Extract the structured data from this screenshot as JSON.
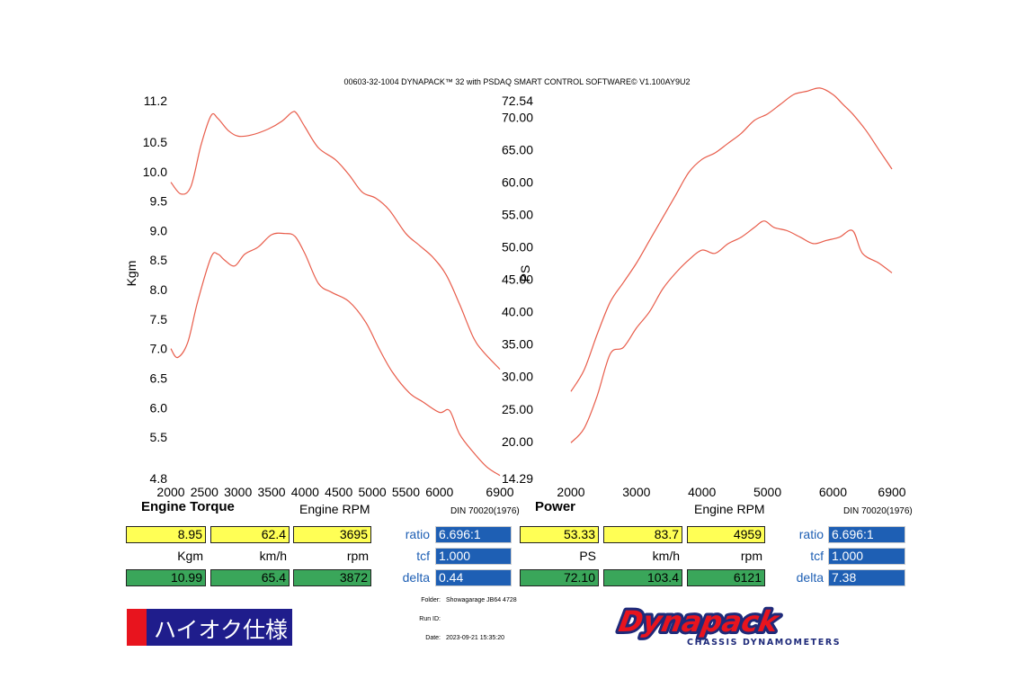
{
  "header": "00603-32-1004 DYNAPACK™ 32 with PSDAQ SMART CONTROL SOFTWARE© V1.100AY9U2",
  "colors": {
    "curve": "#e85c4a",
    "yellow": "#ffff55",
    "green": "#3aa65a",
    "blue": "#1e5fb4",
    "badge": "#1f1d8c",
    "badge_red": "#e8141e"
  },
  "chart_data": [
    {
      "type": "line",
      "title": "Engine Torque",
      "xlabel": "Engine RPM",
      "ylabel": "Kgm",
      "standard": "DIN 70020(1976)",
      "xlim": [
        2000,
        6900
      ],
      "ylim": [
        4.8,
        11.2
      ],
      "xticks": [
        2000,
        2500,
        3000,
        3500,
        4000,
        4500,
        5000,
        5500,
        6000,
        6900
      ],
      "xtick_labels": [
        "2000",
        "2500",
        "3000",
        "3500",
        "4000",
        "4500",
        "5000",
        "5500",
        "6000",
        "6900"
      ],
      "yticks": [
        4.8,
        5.5,
        6.0,
        6.5,
        7.0,
        7.5,
        8.0,
        8.5,
        9.0,
        9.5,
        10.0,
        10.5,
        11.2
      ],
      "ytick_labels": [
        "4.8",
        "5.5",
        "6.0",
        "6.5",
        "7.0",
        "7.5",
        "8.0",
        "8.5",
        "9.0",
        "9.5",
        "10.0",
        "10.5",
        "11.2"
      ],
      "series": [
        {
          "name": "run-upper",
          "x": [
            2000,
            2150,
            2300,
            2450,
            2600,
            2700,
            2850,
            3000,
            3200,
            3450,
            3650,
            3800,
            3870,
            4000,
            4200,
            4450,
            4650,
            4850,
            5050,
            5250,
            5500,
            5700,
            5900,
            6100,
            6300,
            6500,
            6650,
            6900
          ],
          "y": [
            9.82,
            9.62,
            9.75,
            10.45,
            10.95,
            10.9,
            10.7,
            10.6,
            10.62,
            10.72,
            10.85,
            11.0,
            10.99,
            10.75,
            10.4,
            10.2,
            9.95,
            9.65,
            9.55,
            9.35,
            8.95,
            8.75,
            8.55,
            8.25,
            7.75,
            7.2,
            6.95,
            6.65
          ]
        },
        {
          "name": "run-lower",
          "x": [
            2000,
            2100,
            2250,
            2400,
            2600,
            2700,
            2800,
            2950,
            3100,
            3300,
            3500,
            3700,
            3850,
            4000,
            4200,
            4400,
            4650,
            4900,
            5100,
            5300,
            5550,
            5750,
            6000,
            6150,
            6300,
            6500,
            6700,
            6900
          ],
          "y": [
            7.0,
            6.85,
            7.1,
            7.8,
            8.55,
            8.6,
            8.5,
            8.4,
            8.6,
            8.72,
            8.93,
            8.95,
            8.9,
            8.6,
            8.1,
            7.95,
            7.8,
            7.45,
            7.0,
            6.6,
            6.25,
            6.1,
            5.92,
            5.95,
            5.55,
            5.25,
            5.0,
            4.85
          ]
        }
      ]
    },
    {
      "type": "line",
      "title": "Power",
      "xlabel": "Engine RPM",
      "ylabel": "PS",
      "standard": "DIN 70020(1976)",
      "xlim": [
        2000,
        6900
      ],
      "ylim": [
        14.29,
        72.54
      ],
      "xticks": [
        2000,
        3000,
        4000,
        5000,
        6000,
        6900
      ],
      "xtick_labels": [
        "2000",
        "3000",
        "4000",
        "5000",
        "6000",
        "6900"
      ],
      "yticks": [
        14.29,
        20.0,
        25.0,
        30.0,
        35.0,
        40.0,
        45.0,
        50.0,
        55.0,
        60.0,
        65.0,
        70.0,
        72.54
      ],
      "ytick_labels": [
        "14.29",
        "20.00",
        "25.00",
        "30.00",
        "35.00",
        "40.00",
        "45.00",
        "50.00",
        "55.00",
        "60.00",
        "65.00",
        "70.00",
        "72.54"
      ],
      "series": [
        {
          "name": "run-upper",
          "x": [
            2000,
            2200,
            2400,
            2600,
            2800,
            3000,
            3200,
            3400,
            3600,
            3800,
            4000,
            4200,
            4400,
            4600,
            4800,
            5000,
            5200,
            5400,
            5600,
            5800,
            6000,
            6150,
            6300,
            6500,
            6700,
            6900
          ],
          "y": [
            27.7,
            31.0,
            36.5,
            41.5,
            44.5,
            47.5,
            51.0,
            54.5,
            58.0,
            61.5,
            63.5,
            64.5,
            66.0,
            67.5,
            69.5,
            70.5,
            72.0,
            73.5,
            74.0,
            74.5,
            73.5,
            72.0,
            70.5,
            68.0,
            65.0,
            62.0
          ]
        },
        {
          "name": "run-lower",
          "x": [
            2000,
            2200,
            2400,
            2600,
            2800,
            3000,
            3200,
            3400,
            3600,
            3800,
            4000,
            4200,
            4400,
            4600,
            4800,
            4950,
            5100,
            5300,
            5500,
            5700,
            5900,
            6100,
            6300,
            6450,
            6700,
            6900
          ],
          "y": [
            19.8,
            22.0,
            27.0,
            33.5,
            34.5,
            37.5,
            40.0,
            43.5,
            46.0,
            48.0,
            49.5,
            49.0,
            50.5,
            51.5,
            53.0,
            54.0,
            53.0,
            52.5,
            51.5,
            50.5,
            51.0,
            51.5,
            52.5,
            49.0,
            47.5,
            46.0
          ]
        }
      ]
    }
  ],
  "readouts": {
    "torque": {
      "row1": [
        "8.95",
        "62.4",
        "3695"
      ],
      "units": [
        "Kgm",
        "km/h",
        "rpm"
      ],
      "row3": [
        "10.99",
        "65.4",
        "3872"
      ],
      "ratio_label": "ratio",
      "ratio_value": "6.696:1",
      "tcf_label": "tcf",
      "tcf_value": "1.000",
      "delta_label": "delta",
      "delta_value": "0.44"
    },
    "power": {
      "row1": [
        "53.33",
        "83.7",
        "4959"
      ],
      "units": [
        "PS",
        "km/h",
        "rpm"
      ],
      "row3": [
        "72.10",
        "103.4",
        "6121"
      ],
      "ratio_label": "ratio",
      "ratio_value": "6.696:1",
      "tcf_label": "tcf",
      "tcf_value": "1.000",
      "delta_label": "delta",
      "delta_value": "7.38"
    }
  },
  "info": {
    "folder_label": "Folder:",
    "folder_value": "Showagarage JB64 4728",
    "runid_label": "Run ID:",
    "runid_value": "",
    "date_label": "Date:",
    "date_value": "2023-09-21 15:35:20"
  },
  "badge_text": "ハイオク仕様",
  "logo": {
    "name": "Dynapack",
    "tagline": "CHASSIS DYNAMOMETERS"
  }
}
